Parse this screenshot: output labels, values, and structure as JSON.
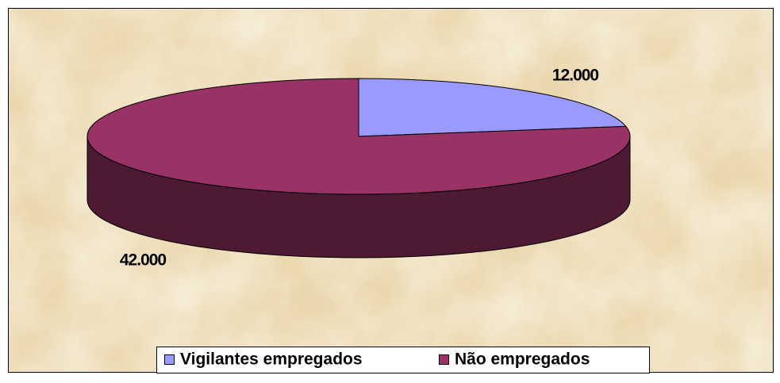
{
  "chart_data": {
    "type": "pie",
    "categories": [
      "Vigilantes empregados",
      "Não empregados"
    ],
    "values": [
      12000,
      42000
    ],
    "value_labels": [
      "12.000",
      "42.000"
    ],
    "colors": [
      "#9999ff",
      "#993366"
    ],
    "side_colors": [
      "#4d4d80",
      "#4d1933"
    ],
    "legend": "bottom"
  }
}
